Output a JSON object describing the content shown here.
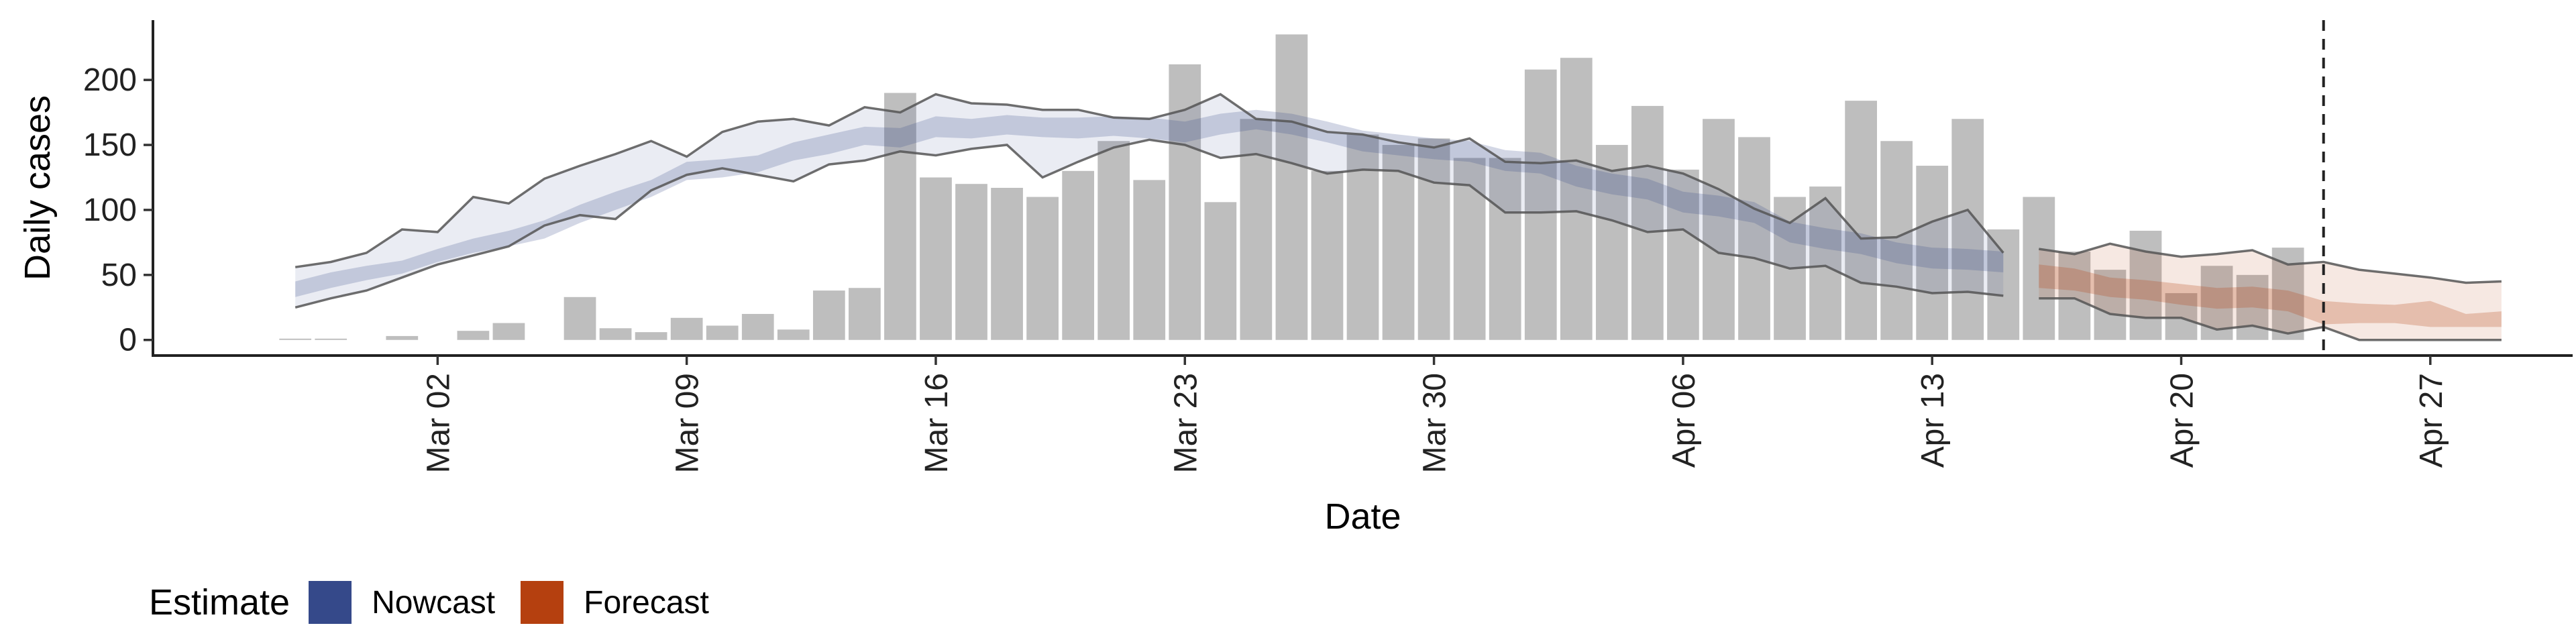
{
  "chart_data": {
    "type": "bar",
    "xlabel": "Date",
    "ylabel": "Daily cases",
    "x_ticks": [
      "Mar 02",
      "Mar 09",
      "Mar 16",
      "Mar 23",
      "Mar 30",
      "Apr 06",
      "Apr 13",
      "Apr 20",
      "Apr 27"
    ],
    "y_ticks": [
      0,
      50,
      100,
      150,
      200
    ],
    "ylim": [
      -12,
      246
    ],
    "xlim": [
      "2020-02-23",
      "2020-05-01"
    ],
    "grid": false,
    "legend": {
      "title": "Estimate",
      "placement": "bottom-left",
      "items": [
        {
          "label": "Nowcast",
          "color": "#35498a"
        },
        {
          "label": "Forecast",
          "color": "#b5400f"
        }
      ]
    },
    "vline_date": "2020-04-24",
    "bars": {
      "color": "#bebebe",
      "dates": [
        "2020-02-27",
        "2020-02-28",
        "2020-03-01",
        "2020-03-03",
        "2020-03-04",
        "2020-03-06",
        "2020-03-07",
        "2020-03-08",
        "2020-03-09",
        "2020-03-10",
        "2020-03-11",
        "2020-03-12",
        "2020-03-13",
        "2020-03-14",
        "2020-03-15",
        "2020-03-16",
        "2020-03-17",
        "2020-03-18",
        "2020-03-19",
        "2020-03-20",
        "2020-03-21",
        "2020-03-22",
        "2020-03-23",
        "2020-03-24",
        "2020-03-25",
        "2020-03-26",
        "2020-03-27",
        "2020-03-28",
        "2020-03-29",
        "2020-03-30",
        "2020-03-31",
        "2020-04-01",
        "2020-04-02",
        "2020-04-03",
        "2020-04-04",
        "2020-04-05",
        "2020-04-06",
        "2020-04-07",
        "2020-04-08",
        "2020-04-09",
        "2020-04-10",
        "2020-04-11",
        "2020-04-12",
        "2020-04-13",
        "2020-04-14",
        "2020-04-15",
        "2020-04-16",
        "2020-04-17",
        "2020-04-18",
        "2020-04-19",
        "2020-04-20",
        "2020-04-21",
        "2020-04-22",
        "2020-04-23",
        "2020-04-24"
      ],
      "values": [
        1,
        1,
        3,
        7,
        13,
        33,
        9,
        6,
        17,
        11,
        20,
        8,
        38,
        40,
        190,
        125,
        120,
        117,
        110,
        130,
        153,
        123,
        212,
        106,
        170,
        235,
        130,
        158,
        150,
        155,
        140,
        140,
        208,
        217,
        150,
        180,
        131,
        170,
        156,
        110,
        118,
        184,
        153,
        134,
        170,
        85,
        110,
        68,
        54,
        84,
        36,
        57,
        50,
        71,
        0
      ]
    },
    "nowcast": {
      "dates": [
        "2020-02-27",
        "2020-02-28",
        "2020-02-29",
        "2020-03-01",
        "2020-03-02",
        "2020-03-03",
        "2020-03-04",
        "2020-03-05",
        "2020-03-06",
        "2020-03-07",
        "2020-03-08",
        "2020-03-09",
        "2020-03-10",
        "2020-03-11",
        "2020-03-12",
        "2020-03-13",
        "2020-03-14",
        "2020-03-15",
        "2020-03-16",
        "2020-03-17",
        "2020-03-18",
        "2020-03-19",
        "2020-03-20",
        "2020-03-21",
        "2020-03-22",
        "2020-03-23",
        "2020-03-24",
        "2020-03-25",
        "2020-03-26",
        "2020-03-27",
        "2020-03-28",
        "2020-03-29",
        "2020-03-30",
        "2020-03-31",
        "2020-04-01",
        "2020-04-02",
        "2020-04-03",
        "2020-04-04",
        "2020-04-05",
        "2020-04-06",
        "2020-04-07",
        "2020-04-08",
        "2020-04-09",
        "2020-04-10",
        "2020-04-11",
        "2020-04-12",
        "2020-04-13",
        "2020-04-14",
        "2020-04-15"
      ],
      "outer_lower": [
        25,
        32,
        38,
        48,
        58,
        65,
        72,
        88,
        96,
        93,
        115,
        127,
        132,
        127,
        122,
        135,
        138,
        145,
        142,
        147,
        150,
        125,
        137,
        148,
        154,
        150,
        140,
        143,
        136,
        128,
        131,
        130,
        121,
        119,
        98,
        98,
        99,
        92,
        83,
        85,
        67,
        63,
        55,
        57,
        44,
        41,
        36,
        37,
        34
      ],
      "outer_upper": [
        56,
        60,
        67,
        85,
        83,
        110,
        105,
        124,
        134,
        143,
        153,
        141,
        160,
        168,
        170,
        165,
        179,
        175,
        189,
        182,
        181,
        177,
        177,
        171,
        170,
        177,
        189,
        170,
        168,
        160,
        158,
        152,
        148,
        155,
        137,
        136,
        138,
        130,
        134,
        128,
        116,
        101,
        90,
        109,
        78,
        79,
        91,
        100,
        67
      ],
      "inner_lower": [
        33,
        40,
        46,
        51,
        60,
        67,
        72,
        78,
        90,
        100,
        110,
        123,
        125,
        129,
        138,
        143,
        150,
        148,
        156,
        155,
        158,
        156,
        155,
        157,
        155,
        152,
        158,
        162,
        158,
        152,
        145,
        142,
        139,
        137,
        130,
        128,
        118,
        112,
        108,
        98,
        95,
        90,
        75,
        70,
        66,
        59,
        55,
        54,
        52
      ],
      "inner_upper": [
        45,
        52,
        57,
        61,
        70,
        78,
        84,
        92,
        104,
        114,
        123,
        137,
        139,
        142,
        152,
        158,
        164,
        163,
        172,
        170,
        173,
        171,
        171,
        172,
        171,
        168,
        174,
        177,
        174,
        168,
        161,
        158,
        155,
        153,
        146,
        144,
        134,
        128,
        124,
        114,
        111,
        106,
        91,
        86,
        82,
        75,
        71,
        70,
        68
      ]
    },
    "forecast": {
      "dates": [
        "2020-04-16",
        "2020-04-17",
        "2020-04-18",
        "2020-04-19",
        "2020-04-20",
        "2020-04-21",
        "2020-04-22",
        "2020-04-23",
        "2020-04-24",
        "2020-04-25",
        "2020-04-26",
        "2020-04-27",
        "2020-04-28",
        "2020-04-29"
      ],
      "outer_lower": [
        32,
        32,
        20,
        17,
        17,
        8,
        11,
        5,
        10,
        0,
        0,
        0,
        0,
        0
      ],
      "outer_upper": [
        70,
        66,
        74,
        68,
        64,
        66,
        69,
        58,
        60,
        54,
        51,
        48,
        44,
        45
      ],
      "inner_lower": [
        40,
        38,
        33,
        31,
        27,
        24,
        25,
        22,
        12,
        13,
        13,
        10,
        10,
        10
      ],
      "inner_upper": [
        58,
        55,
        48,
        46,
        43,
        40,
        41,
        38,
        30,
        28,
        27,
        30,
        20,
        22
      ]
    }
  }
}
